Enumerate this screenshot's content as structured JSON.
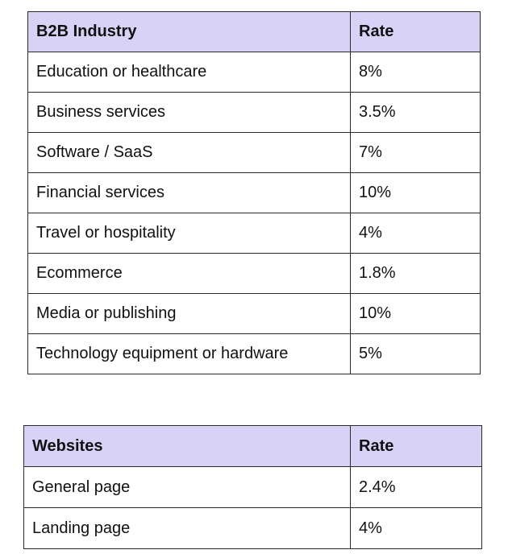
{
  "industry_table": {
    "headers": [
      "B2B Industry",
      "Rate"
    ],
    "rows": [
      [
        "Education or healthcare",
        "8%"
      ],
      [
        "Business services",
        "3.5%"
      ],
      [
        "Software / SaaS",
        "7%"
      ],
      [
        "Financial services",
        "10%"
      ],
      [
        "Travel or hospitality",
        "4%"
      ],
      [
        "Ecommerce",
        "1.8%"
      ],
      [
        "Media or publishing",
        "10%"
      ],
      [
        "Technology equipment or hardware",
        "5%"
      ]
    ]
  },
  "websites_table": {
    "headers": [
      "Websites",
      "Rate"
    ],
    "rows": [
      [
        "General page",
        "2.4%"
      ],
      [
        "Landing page",
        "4%"
      ]
    ]
  },
  "colors": {
    "header_background": "#d9d2f7",
    "border": "#2a2a2a"
  }
}
